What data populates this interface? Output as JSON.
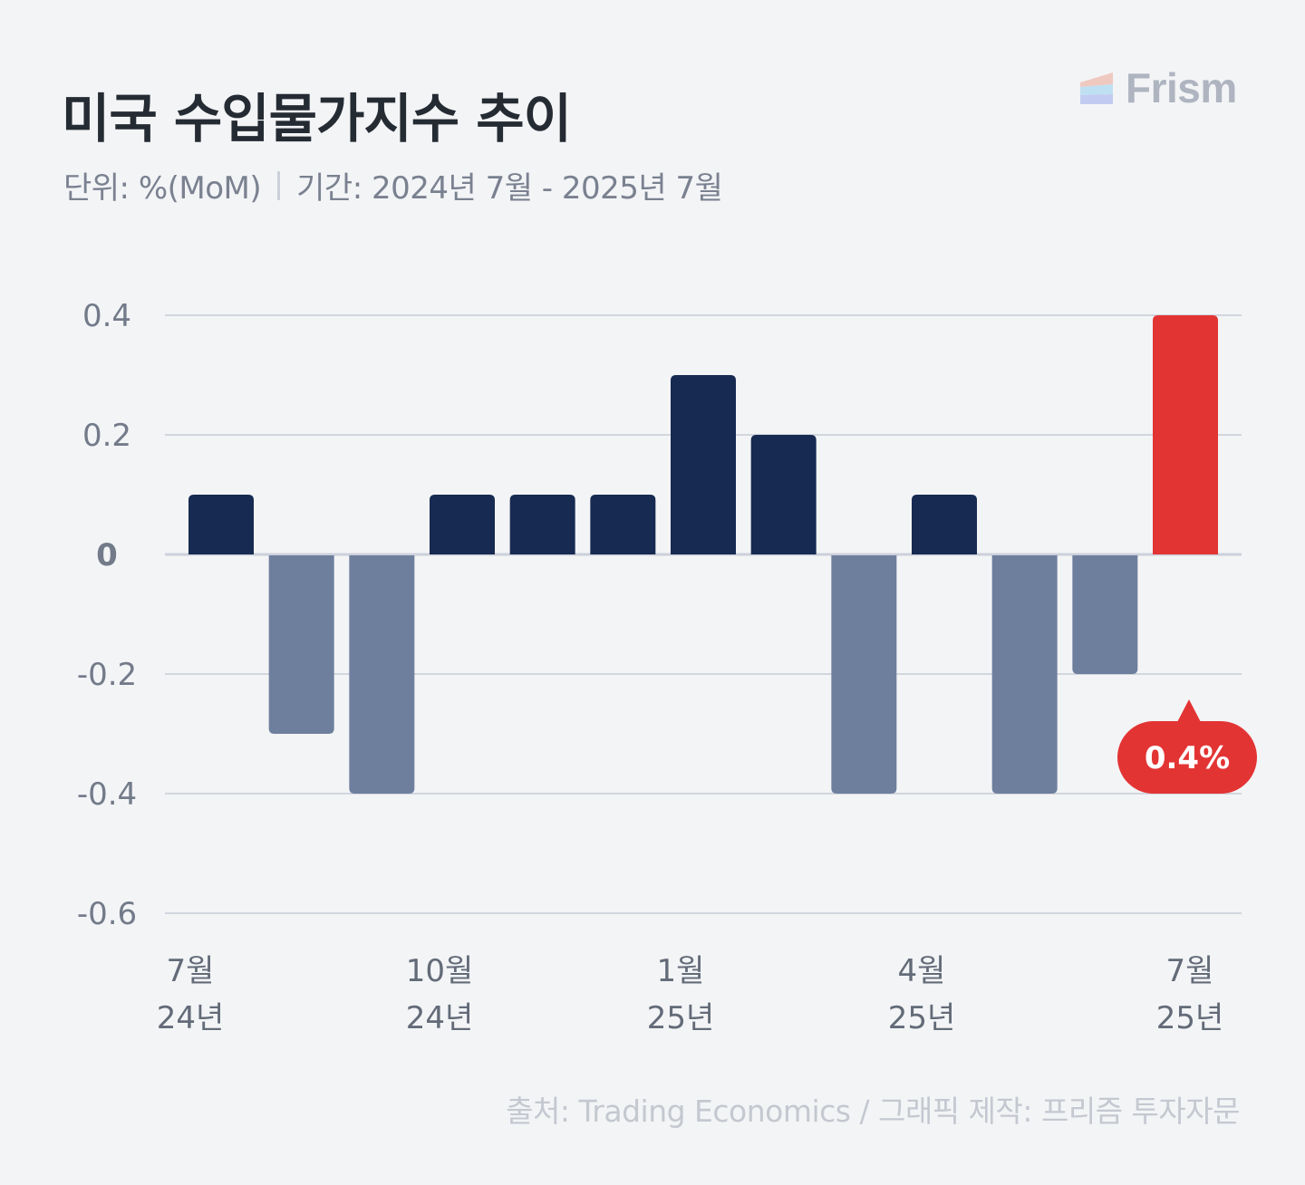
{
  "header": {
    "title": "미국 수입물가지수 추이",
    "unit": "단위: %(MoM)",
    "period": "기간: 2024년 7월 - 2025년 7월"
  },
  "brand": {
    "name": "Frism",
    "logo_icon": "stacked-stripes-logo-icon",
    "logo_colors": [
      "#efc9c0",
      "#bfe0f2",
      "#c2cbf1"
    ]
  },
  "footer": {
    "source": "출처: Trading Economics / 그래픽 제작: 프리즘 투자자문"
  },
  "colors": {
    "positive": "#172a51",
    "negative": "#6e7f9e",
    "highlight": "#e33434",
    "grid": "#d2d6de",
    "zero_line": "#ccd1db"
  },
  "chart_data": {
    "type": "bar",
    "title": "미국 수입물가지수 추이",
    "xlabel": "",
    "ylabel": "%(MoM)",
    "ylim": [
      -0.6,
      0.4
    ],
    "yticks": [
      0.4,
      0.2,
      0,
      -0.2,
      -0.4,
      -0.6
    ],
    "ytick_labels": [
      "0.4",
      "0.2",
      "0",
      "-0.2",
      "-0.4",
      "-0.6"
    ],
    "grid": true,
    "categories": [
      "2024-07",
      "2024-08",
      "2024-09",
      "2024-10",
      "2024-11",
      "2024-12",
      "2025-01",
      "2025-02",
      "2025-03",
      "2025-04",
      "2025-05",
      "2025-06",
      "2025-07"
    ],
    "values": [
      0.1,
      -0.3,
      -0.4,
      0.1,
      0.1,
      0.1,
      0.3,
      0.2,
      -0.4,
      0.1,
      -0.4,
      -0.2,
      0.4
    ],
    "x_tick_labels": [
      {
        "index": 0,
        "month": "7월",
        "year": "24년"
      },
      {
        "index": 3,
        "month": "10월",
        "year": "24년"
      },
      {
        "index": 6,
        "month": "1월",
        "year": "25년"
      },
      {
        "index": 9,
        "month": "4월",
        "year": "25년"
      },
      {
        "index": 12,
        "month": "7월",
        "year": "25년"
      }
    ],
    "highlight_index": 12,
    "annotation": {
      "index": 12,
      "text": "0.4%"
    }
  }
}
